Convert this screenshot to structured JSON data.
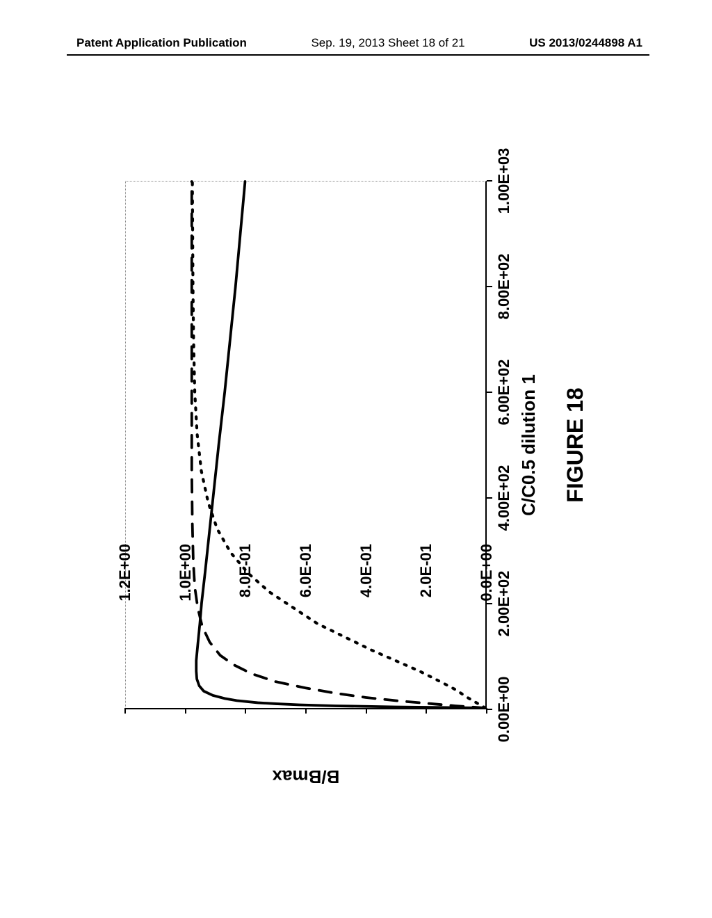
{
  "header": {
    "left": "Patent Application Publication",
    "mid": "Sep. 19, 2013  Sheet 18 of 21",
    "right": "US 2013/0244898 A1"
  },
  "chart": {
    "type": "line",
    "caption": "FIGURE 18",
    "x_label": "C/C0.5 dilution 1",
    "y_label": "B/Bmax",
    "xlim": [
      0,
      1000
    ],
    "ylim": [
      0,
      1.2
    ],
    "x_ticks": [
      {
        "v": 0,
        "label": "0.00E+00"
      },
      {
        "v": 200,
        "label": "2.00E+02"
      },
      {
        "v": 400,
        "label": "4.00E+02"
      },
      {
        "v": 600,
        "label": "6.00E+02"
      },
      {
        "v": 800,
        "label": "8.00E+02"
      },
      {
        "v": 1000,
        "label": "1.00E+03"
      }
    ],
    "y_ticks": [
      {
        "v": 0.0,
        "label": "0.0E+00"
      },
      {
        "v": 0.2,
        "label": "2.0E-01"
      },
      {
        "v": 0.4,
        "label": "4.0E-01"
      },
      {
        "v": 0.6,
        "label": "6.0E-01"
      },
      {
        "v": 0.8,
        "label": "8.0E-01"
      },
      {
        "v": 1.0,
        "label": "1.0E+00"
      },
      {
        "v": 1.2,
        "label": "1.2E+00"
      }
    ],
    "background_color": "#ffffff",
    "axis_color": "#000000",
    "series": [
      {
        "name": "solid",
        "stroke": "#000000",
        "stroke_width": 3.8,
        "dash": "none",
        "points": [
          [
            0,
            0.0
          ],
          [
            2,
            0.3
          ],
          [
            4,
            0.5
          ],
          [
            6,
            0.62
          ],
          [
            8,
            0.7
          ],
          [
            10,
            0.76
          ],
          [
            14,
            0.83
          ],
          [
            18,
            0.87
          ],
          [
            24,
            0.91
          ],
          [
            32,
            0.94
          ],
          [
            42,
            0.955
          ],
          [
            55,
            0.963
          ],
          [
            70,
            0.965
          ],
          [
            90,
            0.965
          ],
          [
            120,
            0.96
          ],
          [
            160,
            0.953
          ],
          [
            200,
            0.947
          ],
          [
            260,
            0.935
          ],
          [
            340,
            0.92
          ],
          [
            420,
            0.905
          ],
          [
            500,
            0.89
          ],
          [
            600,
            0.87
          ],
          [
            700,
            0.852
          ],
          [
            800,
            0.834
          ],
          [
            900,
            0.818
          ],
          [
            1000,
            0.802
          ]
        ]
      },
      {
        "name": "long-dash",
        "stroke": "#000000",
        "stroke_width": 3.8,
        "dash": "18 14",
        "points": [
          [
            0,
            0.0
          ],
          [
            4,
            0.1
          ],
          [
            8,
            0.18
          ],
          [
            14,
            0.3
          ],
          [
            20,
            0.4
          ],
          [
            28,
            0.5
          ],
          [
            38,
            0.6
          ],
          [
            50,
            0.7
          ],
          [
            65,
            0.78
          ],
          [
            82,
            0.84
          ],
          [
            100,
            0.885
          ],
          [
            125,
            0.92
          ],
          [
            155,
            0.945
          ],
          [
            190,
            0.96
          ],
          [
            230,
            0.97
          ],
          [
            280,
            0.975
          ],
          [
            350,
            0.978
          ],
          [
            450,
            0.98
          ],
          [
            600,
            0.98
          ],
          [
            800,
            0.98
          ],
          [
            1000,
            0.98
          ]
        ]
      },
      {
        "name": "dotted",
        "stroke": "#000000",
        "stroke_width": 4.2,
        "dash": "3 10",
        "points": [
          [
            0,
            0.0
          ],
          [
            10,
            0.03
          ],
          [
            20,
            0.06
          ],
          [
            35,
            0.1
          ],
          [
            50,
            0.15
          ],
          [
            70,
            0.22
          ],
          [
            90,
            0.3
          ],
          [
            110,
            0.38
          ],
          [
            135,
            0.47
          ],
          [
            160,
            0.56
          ],
          [
            190,
            0.64
          ],
          [
            220,
            0.72
          ],
          [
            255,
            0.79
          ],
          [
            295,
            0.85
          ],
          [
            340,
            0.895
          ],
          [
            390,
            0.925
          ],
          [
            450,
            0.948
          ],
          [
            520,
            0.962
          ],
          [
            600,
            0.97
          ],
          [
            700,
            0.974
          ],
          [
            800,
            0.976
          ],
          [
            900,
            0.977
          ],
          [
            1000,
            0.978
          ]
        ]
      }
    ]
  }
}
